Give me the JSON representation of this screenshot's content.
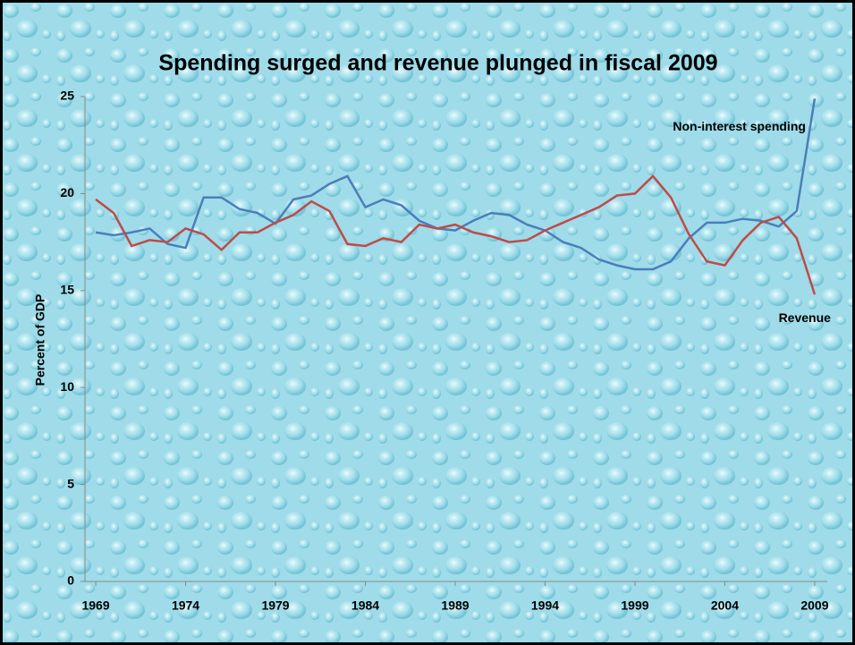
{
  "chart_data": {
    "type": "line",
    "title": "Spending surged and revenue plunged in fiscal 2009",
    "ylabel": "Percent of GDP",
    "x": [
      1969,
      1970,
      1971,
      1972,
      1973,
      1974,
      1975,
      1976,
      1977,
      1978,
      1979,
      1980,
      1981,
      1982,
      1983,
      1984,
      1985,
      1986,
      1987,
      1988,
      1989,
      1990,
      1991,
      1992,
      1993,
      1994,
      1995,
      1996,
      1997,
      1998,
      1999,
      2000,
      2001,
      2002,
      2003,
      2004,
      2005,
      2006,
      2007,
      2008,
      2009
    ],
    "series": [
      {
        "name": "Non-interest spending",
        "color": "#4a7ebb",
        "values": [
          18.0,
          17.85,
          18.0,
          18.2,
          17.4,
          17.2,
          19.8,
          19.8,
          19.2,
          19.0,
          18.45,
          19.7,
          19.9,
          20.5,
          20.9,
          19.3,
          19.7,
          19.4,
          18.6,
          18.2,
          18.1,
          18.6,
          19.0,
          18.9,
          18.4,
          18.1,
          17.5,
          17.2,
          16.6,
          16.3,
          16.1,
          16.1,
          16.5,
          17.7,
          18.5,
          18.5,
          18.7,
          18.6,
          18.3,
          19.1,
          24.9
        ]
      },
      {
        "name": "Revenue",
        "color": "#be4b48",
        "values": [
          19.7,
          19.0,
          17.3,
          17.6,
          17.5,
          18.2,
          17.9,
          17.1,
          18.0,
          18.0,
          18.5,
          18.9,
          19.6,
          19.1,
          17.4,
          17.3,
          17.7,
          17.5,
          18.4,
          18.2,
          18.4,
          18.0,
          17.8,
          17.5,
          17.6,
          18.1,
          18.5,
          18.9,
          19.3,
          19.9,
          20.0,
          20.9,
          19.8,
          17.9,
          16.5,
          16.3,
          17.6,
          18.5,
          18.8,
          17.7,
          14.8
        ]
      }
    ],
    "xlim": [
      1968.4,
      2009.7
    ],
    "xticks": [
      1969,
      1974,
      1979,
      1984,
      1989,
      1994,
      1999,
      2004,
      2009
    ],
    "ylim": [
      0,
      25
    ],
    "yticks": [
      0,
      5,
      10,
      15,
      20,
      25
    ],
    "grid": false
  }
}
